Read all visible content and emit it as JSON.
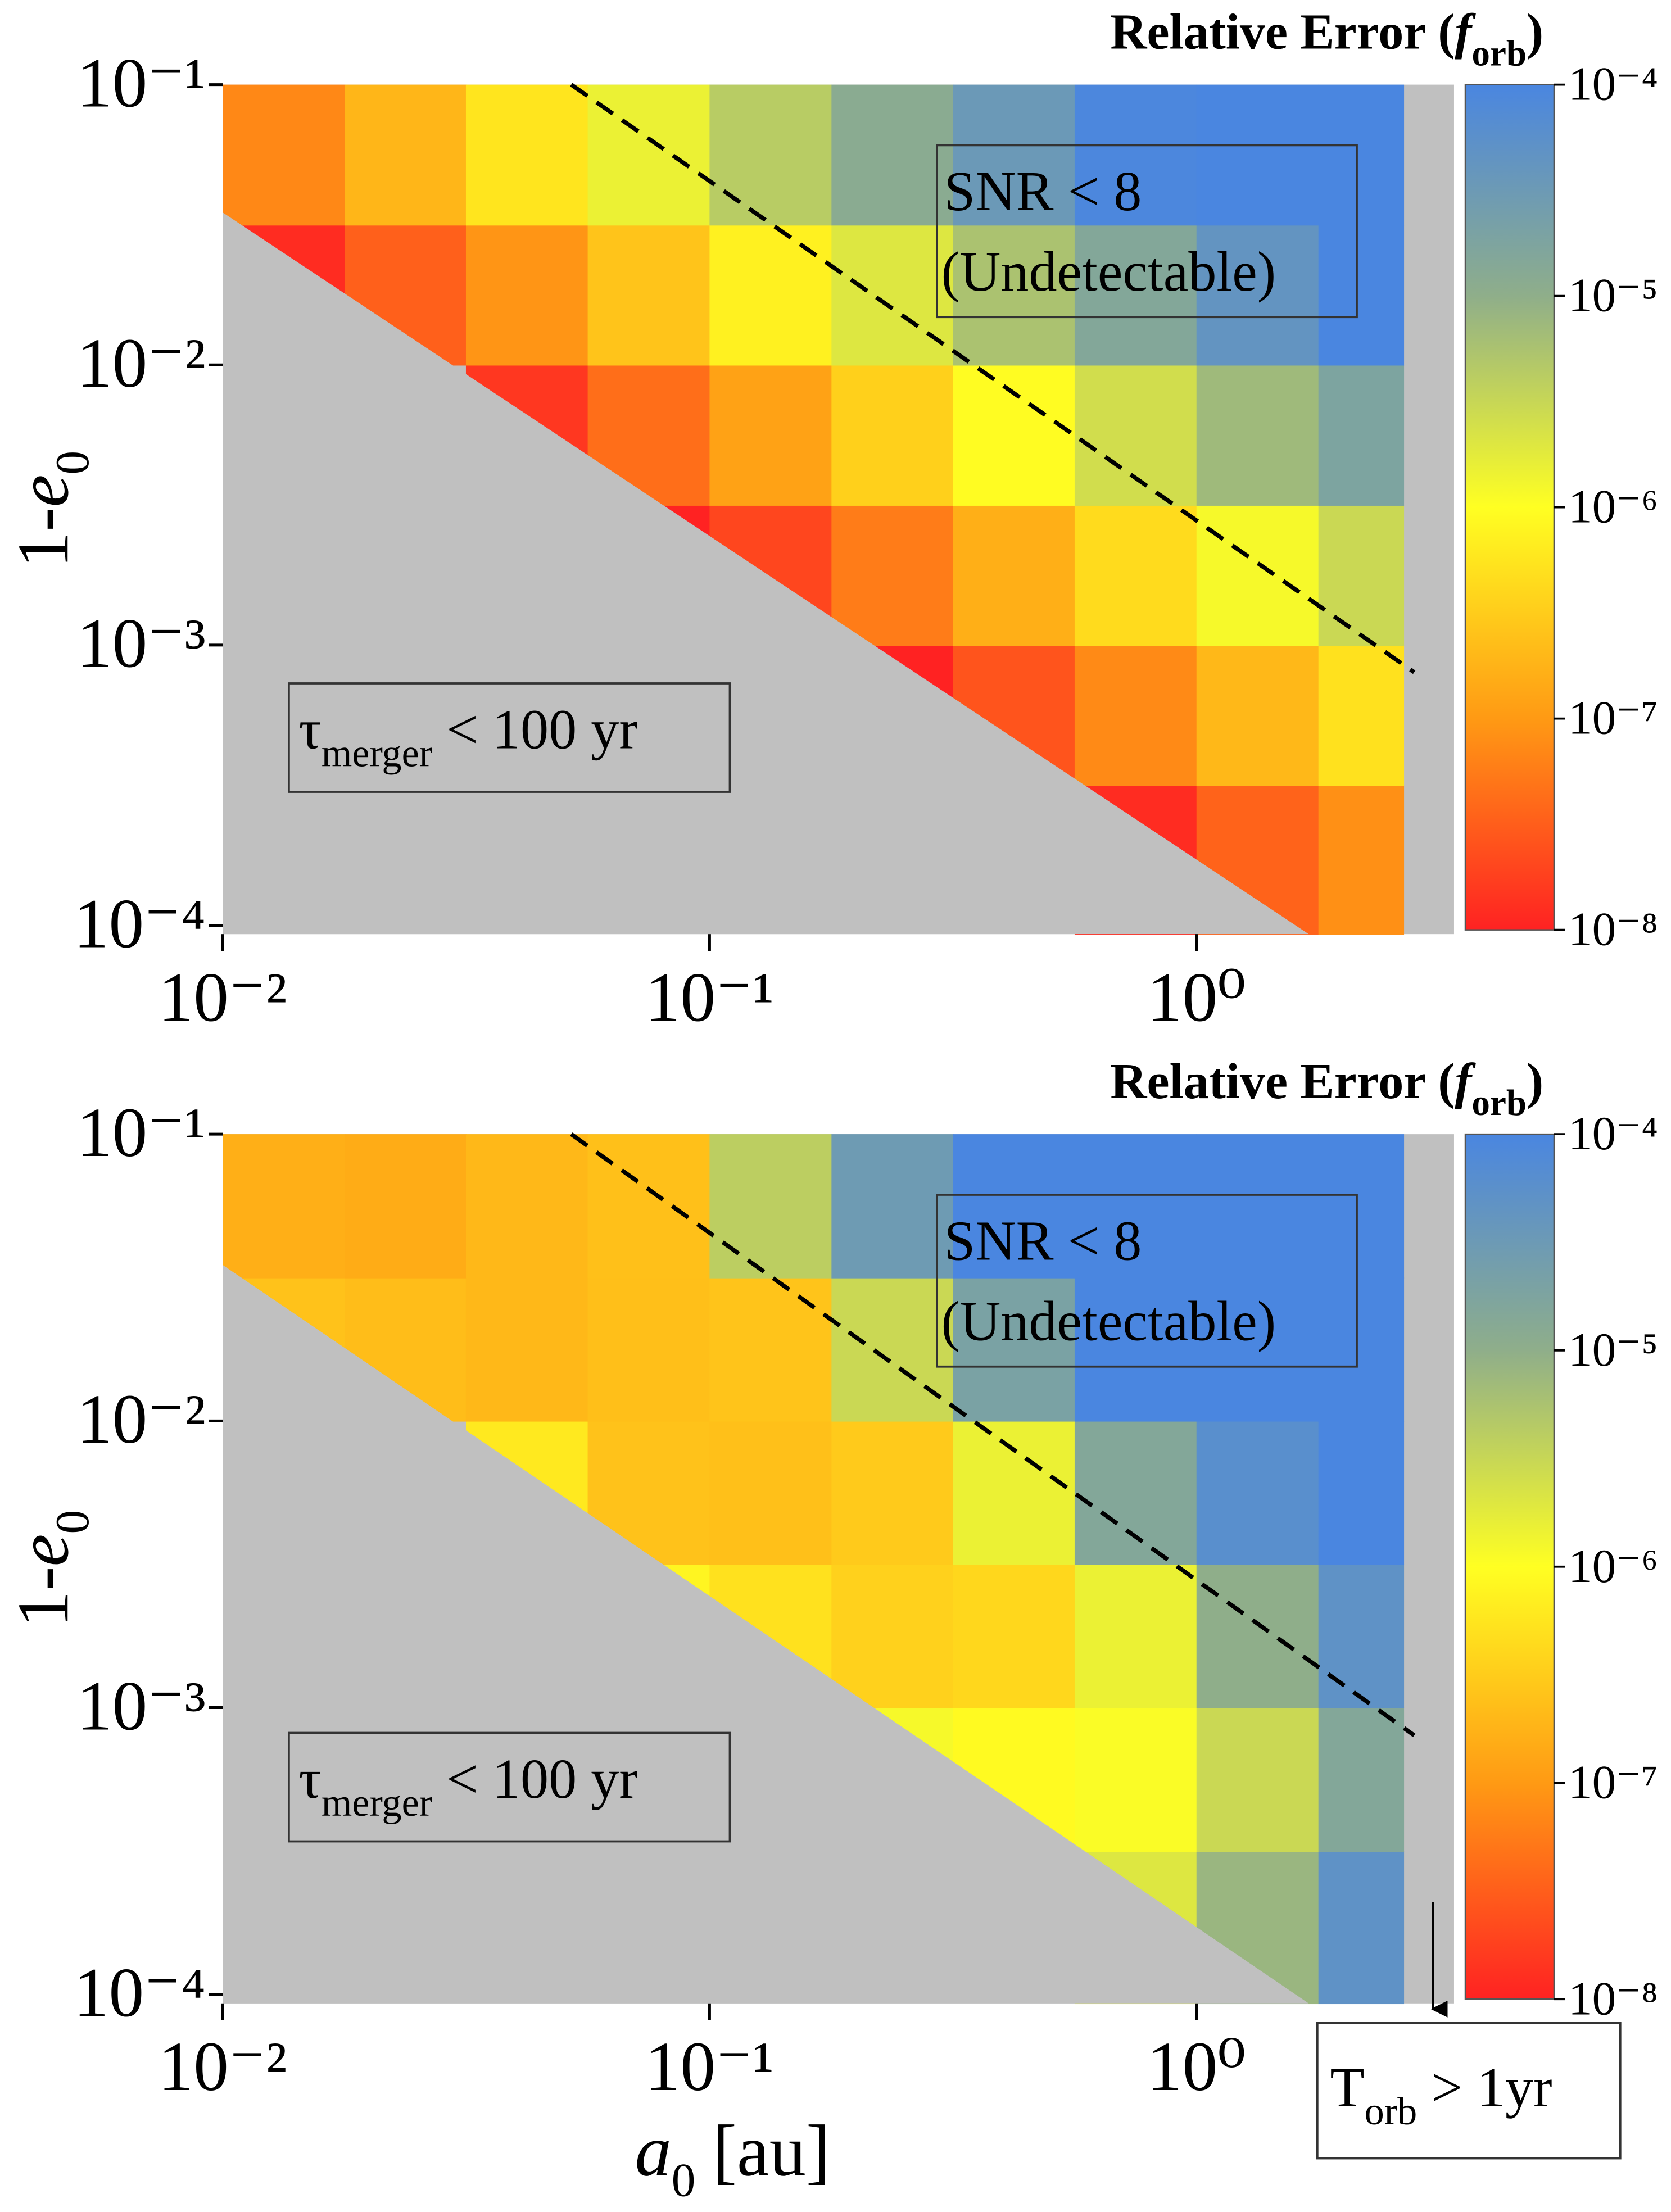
{
  "chart_data": [
    {
      "type": "heatmap",
      "colorbar_title": [
        "Relative Error (",
        "f",
        "orb",
        ")"
      ],
      "y_label": [
        "1-",
        "e",
        "0"
      ],
      "xlim": [
        0.01,
        3.38
      ],
      "ylim": [
        9.3e-05,
        0.1
      ],
      "log_x": true,
      "log_y": true,
      "xticks": [
        {
          "value": 0.01,
          "label": "10⁻²"
        },
        {
          "value": 0.1,
          "label": "10⁻¹"
        },
        {
          "value": 1,
          "label": "10⁰"
        }
      ],
      "yticks": [
        {
          "value": 0.0001,
          "label": "10⁻⁴"
        },
        {
          "value": 0.001,
          "label": "10⁻³"
        },
        {
          "value": 0.01,
          "label": "10⁻²"
        },
        {
          "value": 0.1,
          "label": "10⁻¹"
        }
      ],
      "clim": [
        1e-08,
        0.0001
      ],
      "cticks": [
        {
          "value": 1e-08,
          "label": "10⁻⁸"
        },
        {
          "value": 1e-07,
          "label": "10⁻⁷"
        },
        {
          "value": 1e-06,
          "label": "10⁻⁶"
        },
        {
          "value": 1e-05,
          "label": "10⁻⁵"
        },
        {
          "value": 0.0001,
          "label": "10⁻⁴"
        }
      ],
      "colormap": [
        "#ff2222",
        "#ff9a14",
        "#ffff22",
        "#8fae8a",
        "#4a86e0"
      ],
      "x_edges": [
        0.01,
        0.0178,
        0.0316,
        0.0562,
        0.1,
        0.178,
        0.316,
        0.562,
        1,
        1.78,
        2.66
      ],
      "y_edges": [
        9.3e-05,
        0.000316,
        0.001,
        0.00316,
        0.01,
        0.0316,
        0.1
      ],
      "z": [
        [
          null,
          null,
          null,
          null,
          null,
          null,
          null,
          1.2e-08,
          3.5e-08,
          8.3e-08
        ],
        [
          null,
          null,
          null,
          null,
          null,
          1e-08,
          2.6e-08,
          7.4e-08,
          2e-07,
          5e-07
        ],
        [
          null,
          null,
          null,
          1e-08,
          2e-08,
          5.6e-08,
          1.6e-07,
          4.4e-07,
          1.2e-06,
          3e-06
        ],
        [
          null,
          null,
          1.5e-08,
          4.3e-08,
          1.2e-07,
          3.4e-07,
          9.3e-07,
          2.6e-06,
          7.2e-06,
          1.8e-05
        ],
        [
          1.2e-08,
          3.3e-08,
          9.1e-08,
          2.6e-07,
          7.2e-07,
          2e-06,
          5.6e-06,
          1.5e-05,
          4.4e-05,
          0.0001
        ],
        [
          7.1e-08,
          1.9e-07,
          5.5e-07,
          1.5e-06,
          4.3e-06,
          1.2e-05,
          3.3e-05,
          9.3e-05,
          0.0001,
          0.0001
        ]
      ],
      "snr_line": {
        "x": [
          0.052,
          2.8
        ],
        "y": [
          0.1,
          0.0008
        ]
      },
      "merger_line": {
        "x": [
          0.01,
          1.7
        ],
        "y": [
          0.035,
          9.3e-05
        ]
      },
      "snr_box": [
        "SNR < 8",
        "(Undetectable)"
      ],
      "merger_box": [
        "τ",
        "merger",
        "< 100 yr"
      ]
    },
    {
      "type": "heatmap",
      "colorbar_title": [
        "Relative Error (",
        "f",
        "orb",
        ")"
      ],
      "y_label": [
        "1-",
        "e",
        "0"
      ],
      "x_label": [
        "a",
        "0",
        "[au]"
      ],
      "xlim": [
        0.01,
        3.38
      ],
      "ylim": [
        9.3e-05,
        0.1
      ],
      "log_x": true,
      "log_y": true,
      "xticks": [
        {
          "value": 0.01,
          "label": "10⁻²"
        },
        {
          "value": 0.1,
          "label": "10⁻¹"
        },
        {
          "value": 1,
          "label": "10⁰"
        }
      ],
      "yticks": [
        {
          "value": 0.0001,
          "label": "10⁻⁴"
        },
        {
          "value": 0.001,
          "label": "10⁻³"
        },
        {
          "value": 0.01,
          "label": "10⁻²"
        },
        {
          "value": 0.1,
          "label": "10⁻¹"
        }
      ],
      "clim": [
        1e-08,
        0.0001
      ],
      "cticks": [
        {
          "value": 1e-08,
          "label": "10⁻⁸"
        },
        {
          "value": 1e-07,
          "label": "10⁻⁷"
        },
        {
          "value": 1e-06,
          "label": "10⁻⁶"
        },
        {
          "value": 1e-05,
          "label": "10⁻⁵"
        },
        {
          "value": 0.0001,
          "label": "10⁻⁴"
        }
      ],
      "colormap": [
        "#ff2222",
        "#ff9a14",
        "#ffff22",
        "#8fae8a",
        "#4a86e0"
      ],
      "x_edges": [
        0.01,
        0.0178,
        0.0316,
        0.0562,
        0.1,
        0.178,
        0.316,
        0.562,
        1,
        1.78,
        2.66
      ],
      "y_edges": [
        9.3e-05,
        0.000316,
        0.001,
        0.00316,
        0.01,
        0.0316,
        0.1
      ],
      "z": [
        [
          null,
          null,
          null,
          null,
          null,
          null,
          null,
          2e-06,
          8e-06,
          5e-05
        ],
        [
          null,
          null,
          null,
          null,
          null,
          1.2e-06,
          9e-07,
          1.1e-06,
          3e-06,
          1.5e-05
        ],
        [
          null,
          null,
          null,
          8e-07,
          5e-07,
          3.5e-07,
          4e-07,
          1.5e-06,
          1e-05,
          5e-05
        ],
        [
          null,
          null,
          6e-07,
          2.5e-07,
          2.4e-07,
          3e-07,
          1.5e-06,
          1.5e-05,
          6e-05,
          0.0001
        ],
        [
          2.5e-07,
          2.2e-07,
          2e-07,
          2.3e-07,
          2.6e-07,
          3e-06,
          2e-05,
          0.0001,
          0.0001,
          0.0001
        ],
        [
          1.6e-07,
          1.5e-07,
          2e-07,
          2.4e-07,
          4e-06,
          3e-05,
          0.0001,
          0.0001,
          0.0001,
          0.0001
        ]
      ],
      "snr_line": {
        "x": [
          0.052,
          2.8
        ],
        "y": [
          0.1,
          0.0008
        ]
      },
      "merger_line": {
        "x": [
          0.01,
          1.7
        ],
        "y": [
          0.035,
          9.3e-05
        ]
      },
      "snr_box": [
        "SNR < 8",
        "(Undetectable)"
      ],
      "merger_box": [
        "τ",
        "merger",
        "< 100 yr"
      ],
      "note": [
        "T",
        "orb",
        "> 1yr"
      ]
    }
  ]
}
